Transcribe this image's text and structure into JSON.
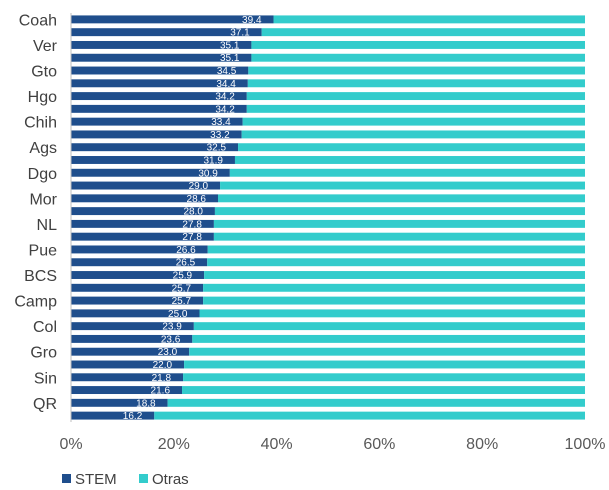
{
  "chart_data": {
    "type": "bar",
    "orientation": "horizontal",
    "stacked": true,
    "categories": [
      "Coah",
      "",
      "Ver",
      "",
      "Gto",
      "",
      "Hgo",
      "",
      "Chih",
      "",
      "Ags",
      "",
      "Dgo",
      "",
      "Mor",
      "",
      "NL",
      "",
      "Pue",
      "",
      "BCS",
      "",
      "Camp",
      "",
      "Col",
      "",
      "Gro",
      "",
      "Sin",
      "",
      "QR",
      ""
    ],
    "series": [
      {
        "name": "STEM",
        "color": "#1f4e8c",
        "values": [
          39.4,
          37.1,
          35.1,
          35.1,
          34.5,
          34.4,
          34.2,
          34.2,
          33.4,
          33.2,
          32.5,
          31.9,
          30.9,
          29.0,
          28.6,
          28.0,
          27.8,
          27.8,
          26.6,
          26.5,
          25.9,
          25.7,
          25.7,
          25.0,
          23.9,
          23.6,
          23.0,
          22.0,
          21.8,
          21.6,
          18.8,
          16.2
        ]
      },
      {
        "name": "Otras",
        "color": "#33cccc",
        "values": [
          60.6,
          62.9,
          64.9,
          64.9,
          65.5,
          65.6,
          65.8,
          65.8,
          66.6,
          66.8,
          67.5,
          68.1,
          69.1,
          71.0,
          71.4,
          72.0,
          72.2,
          72.2,
          73.4,
          73.5,
          74.1,
          74.3,
          74.3,
          75.0,
          76.1,
          76.4,
          77.0,
          78.0,
          78.2,
          78.4,
          81.2,
          83.8
        ]
      }
    ],
    "data_labels": [
      "39.4",
      "37.1",
      "35.1",
      "35.1",
      "34.5",
      "34.4",
      "34.2",
      "34.2",
      "33.4",
      "33.2",
      "32.5",
      "31.9",
      "30.9",
      "29.0",
      "28.6",
      "28.0",
      "27.8",
      "27.8",
      "26.6",
      "26.5",
      "25.9",
      "25.7",
      "25.7",
      "25.0",
      "23.9",
      "23.6",
      "23.0",
      "22.0",
      "21.8",
      "21.6",
      "18.8",
      "16.2"
    ],
    "x_ticks": [
      "0%",
      "20%",
      "40%",
      "60%",
      "80%",
      "100%"
    ],
    "xlim": [
      0,
      100
    ],
    "grid": false,
    "legend_position": "bottom-left",
    "legend": [
      "STEM",
      "Otras"
    ]
  }
}
